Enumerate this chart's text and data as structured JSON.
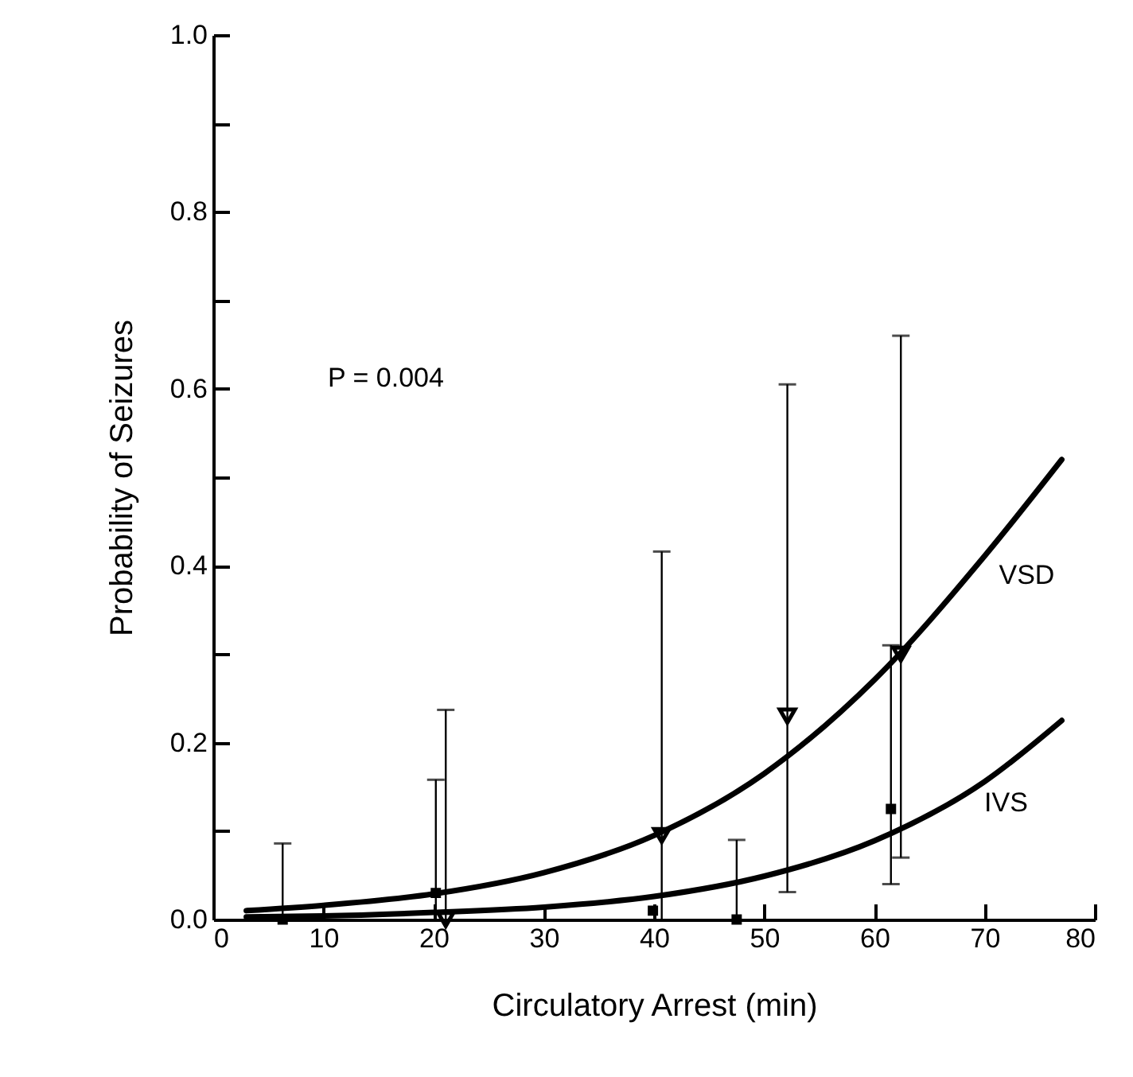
{
  "chart_data": {
    "type": "line",
    "xlabel": "Circulatory Arrest (min)",
    "ylabel": "Probability of Seizures",
    "xlim": [
      0,
      80
    ],
    "ylim": [
      0,
      1
    ],
    "xticks": [
      0,
      10,
      20,
      30,
      40,
      50,
      60,
      70,
      80
    ],
    "yticks": [
      {
        "value": 0,
        "label": "0.0"
      },
      {
        "value": 0.1,
        "label": null
      },
      0.2,
      {
        "value": 0.3,
        "label": null
      },
      0.4,
      {
        "value": 0.5,
        "label": null
      },
      0.6,
      {
        "value": 0.7,
        "label": null
      },
      0.8,
      {
        "value": 0.9,
        "label": null
      },
      {
        "value": 1,
        "label": "1.0"
      }
    ],
    "annotations": [
      "P = 0.004"
    ],
    "series": [
      {
        "name": "VSD",
        "type": "line",
        "color": "#000000",
        "x": [
          3,
          10,
          20,
          30,
          40,
          50,
          60,
          70,
          77
        ],
        "values": [
          0.01,
          0.016,
          0.029,
          0.053,
          0.095,
          0.165,
          0.271,
          0.411,
          0.52
        ]
      },
      {
        "name": "IVS",
        "type": "line",
        "color": "#000000",
        "x": [
          3,
          10,
          20,
          30,
          40,
          50,
          60,
          70,
          77
        ],
        "values": [
          0.003,
          0.004,
          0.008,
          0.014,
          0.026,
          0.049,
          0.089,
          0.156,
          0.225
        ]
      },
      {
        "type": "scatter",
        "marker": "triangle",
        "color": "#000000",
        "x": [
          21.1,
          40.7,
          52.1,
          62.4
        ],
        "values": [
          0,
          0.095,
          0.23,
          0.3
        ],
        "errors": [
          [
            0,
            0.237
          ],
          [
            0,
            0.416
          ],
          [
            0.031,
            0.605
          ],
          [
            0.07,
            0.66
          ]
        ]
      },
      {
        "type": "scatter",
        "marker": "square",
        "color": "#000000",
        "x": [
          6.3,
          20.2,
          39.9,
          47.5,
          61.5
        ],
        "values": [
          0,
          0.03,
          0.01,
          0,
          0.125
        ],
        "errors": [
          [
            0,
            0.086
          ],
          [
            0,
            0.158
          ],
          null,
          [
            0,
            0.09
          ],
          [
            0.04,
            0.31
          ]
        ]
      }
    ]
  }
}
